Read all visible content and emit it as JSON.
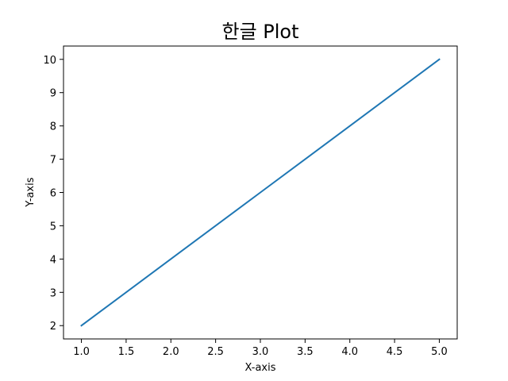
{
  "chart_data": {
    "type": "line",
    "title": "한글 Plot",
    "xlabel": "X-axis",
    "ylabel": "Y-axis",
    "xlim": [
      0.8,
      5.2
    ],
    "ylim": [
      1.6,
      10.4
    ],
    "xticks": [
      1.0,
      1.5,
      2.0,
      2.5,
      3.0,
      3.5,
      4.0,
      4.5,
      5.0
    ],
    "xtick_labels": [
      "1.0",
      "1.5",
      "2.0",
      "2.5",
      "3.0",
      "3.5",
      "4.0",
      "4.5",
      "5.0"
    ],
    "yticks": [
      2,
      3,
      4,
      5,
      6,
      7,
      8,
      9,
      10
    ],
    "ytick_labels": [
      "2",
      "3",
      "4",
      "5",
      "6",
      "7",
      "8",
      "9",
      "10"
    ],
    "grid": false,
    "legend": false,
    "series": [
      {
        "x": [
          1,
          2,
          3,
          4,
          5
        ],
        "y": [
          2,
          4,
          6,
          8,
          10
        ],
        "color": "#1f77b4"
      }
    ]
  }
}
